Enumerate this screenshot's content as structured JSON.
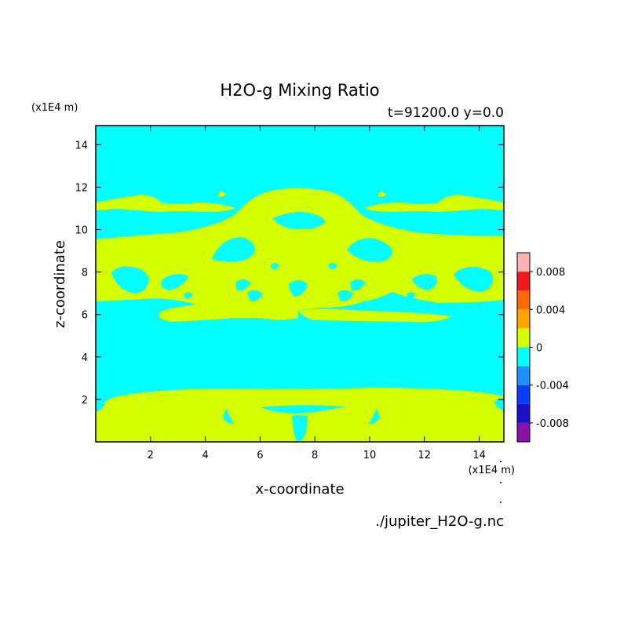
{
  "chart_data": {
    "type": "heatmap",
    "title": "H2O-g Mixing Ratio",
    "subtitle": "t=91200.0 y=0.0",
    "xlabel": "x-coordinate",
    "ylabel": "z-coordinate",
    "x_unit": "(x1E4 m)",
    "y_unit": "(x1E4 m)",
    "source": "./jupiter_H2O-g.nc",
    "xlim": [
      0,
      14.9
    ],
    "ylim": [
      0,
      14.9
    ],
    "x_ticks": [
      2,
      4,
      6,
      8,
      10,
      12,
      14
    ],
    "y_ticks": [
      2,
      4,
      6,
      8,
      10,
      12,
      14
    ],
    "colorbar": {
      "levels": [
        -0.01,
        -0.008,
        -0.006,
        -0.004,
        -0.002,
        0,
        0.002,
        0.004,
        0.006,
        0.008,
        0.01
      ],
      "colors": [
        "#8B10A8",
        "#1A10C8",
        "#0A3CFF",
        "#1E90FF",
        "#00FFFF",
        "#D4FF00",
        "#FFA500",
        "#FF6A00",
        "#F01818",
        "#FFB0B0"
      ],
      "tick_values": [
        0.008,
        0.004,
        0,
        -0.004,
        -0.008
      ],
      "tick_labels": [
        "0.008",
        "0.004",
        "0",
        "-0.004",
        "-0.008"
      ]
    },
    "background_level": "#00FFFF",
    "feature_color": "#D4FF00"
  }
}
